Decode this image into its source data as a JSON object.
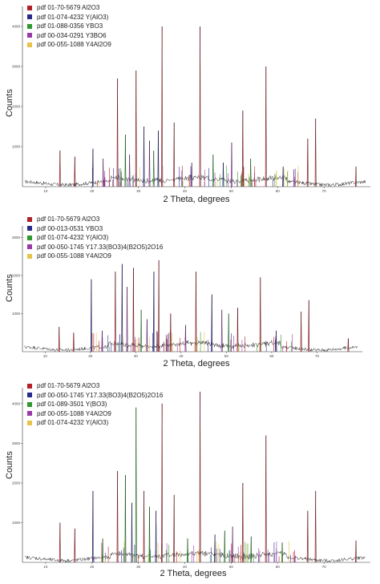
{
  "chart_data": [
    {
      "type": "line",
      "xlabel": "2 Theta, degrees",
      "ylabel": "Counts",
      "xlim": [
        5,
        80
      ],
      "ylim": [
        0,
        4500
      ],
      "xticks": [
        "10",
        "20",
        "30",
        "40",
        "50",
        "60",
        "70"
      ],
      "yticks": [
        "1000",
        "2000",
        "3000",
        "4000"
      ],
      "legend": [
        {
          "label": "pdf 01-70-5679 Al2O3",
          "color": "#b4202a"
        },
        {
          "label": "pdf 01-074-4232 Y(AlO3)",
          "color": "#2a2a8c"
        },
        {
          "label": "pdf 01-088-0356 YBO3",
          "color": "#2e9a2e"
        },
        {
          "label": "pdf 00-034-0291 Y3BO6",
          "color": "#9a3aa8"
        },
        {
          "label": "pdf 00-055-1088 Y4Al2O9",
          "color": "#e8c34a"
        }
      ],
      "peaks": [
        {
          "x": 13.1,
          "y": 900,
          "c": 0
        },
        {
          "x": 16.3,
          "y": 750,
          "c": 0
        },
        {
          "x": 20.2,
          "y": 950,
          "c": 1
        },
        {
          "x": 22.4,
          "y": 700,
          "c": 3
        },
        {
          "x": 25.5,
          "y": 2700,
          "c": 0
        },
        {
          "x": 27.2,
          "y": 1300,
          "c": 2
        },
        {
          "x": 28.1,
          "y": 800,
          "c": 3
        },
        {
          "x": 29.5,
          "y": 2900,
          "c": 0
        },
        {
          "x": 31.2,
          "y": 1500,
          "c": 1
        },
        {
          "x": 32.4,
          "y": 1150,
          "c": 3
        },
        {
          "x": 33.3,
          "y": 900,
          "c": 2
        },
        {
          "x": 34.3,
          "y": 1400,
          "c": 1
        },
        {
          "x": 35.1,
          "y": 4000,
          "c": 0
        },
        {
          "x": 37.7,
          "y": 1600,
          "c": 0
        },
        {
          "x": 41.5,
          "y": 600,
          "c": 3
        },
        {
          "x": 43.3,
          "y": 4000,
          "c": 0
        },
        {
          "x": 46.1,
          "y": 800,
          "c": 2
        },
        {
          "x": 48.3,
          "y": 600,
          "c": 1
        },
        {
          "x": 50.1,
          "y": 1100,
          "c": 3
        },
        {
          "x": 52.5,
          "y": 1900,
          "c": 0
        },
        {
          "x": 54.2,
          "y": 700,
          "c": 2
        },
        {
          "x": 57.5,
          "y": 3000,
          "c": 0
        },
        {
          "x": 61.2,
          "y": 500,
          "c": 1
        },
        {
          "x": 66.5,
          "y": 1200,
          "c": 0
        },
        {
          "x": 68.2,
          "y": 1700,
          "c": 0
        },
        {
          "x": 76.9,
          "y": 500,
          "c": 0
        }
      ]
    },
    {
      "type": "line",
      "xlabel": "2 Theta, degrees",
      "ylabel": "Counts",
      "xlim": [
        5,
        80
      ],
      "ylim": [
        0,
        3300
      ],
      "xticks": [
        "10",
        "20",
        "30",
        "40",
        "50",
        "60",
        "70"
      ],
      "yticks": [
        "1000",
        "2000",
        "3000"
      ],
      "legend": [
        {
          "label": "pdf 01-70-5679 Al2O3",
          "color": "#b4202a"
        },
        {
          "label": "pdf 00-013-0531 YBO3",
          "color": "#2a2a8c"
        },
        {
          "label": "pdf 01-074-4232 Y(AlO3)",
          "color": "#2e9a2e"
        },
        {
          "label": "pdf 00-050-1745 Y17.33(BO3)4(B2O5)2O16",
          "color": "#9a3aa8"
        },
        {
          "label": "pdf 00-055-1088 Y4Al2O9",
          "color": "#e8c34a"
        }
      ],
      "peaks": [
        {
          "x": 13.1,
          "y": 650,
          "c": 0
        },
        {
          "x": 16.3,
          "y": 500,
          "c": 0
        },
        {
          "x": 20.2,
          "y": 1900,
          "c": 1
        },
        {
          "x": 22.6,
          "y": 550,
          "c": 3
        },
        {
          "x": 25.5,
          "y": 2100,
          "c": 0
        },
        {
          "x": 27.0,
          "y": 2300,
          "c": 1
        },
        {
          "x": 28.1,
          "y": 1700,
          "c": 3
        },
        {
          "x": 29.5,
          "y": 2200,
          "c": 0
        },
        {
          "x": 31.2,
          "y": 1100,
          "c": 2
        },
        {
          "x": 32.5,
          "y": 850,
          "c": 3
        },
        {
          "x": 34.0,
          "y": 2100,
          "c": 1
        },
        {
          "x": 35.1,
          "y": 2400,
          "c": 0
        },
        {
          "x": 37.7,
          "y": 1000,
          "c": 0
        },
        {
          "x": 41.0,
          "y": 700,
          "c": 3
        },
        {
          "x": 43.3,
          "y": 2100,
          "c": 0
        },
        {
          "x": 46.8,
          "y": 1500,
          "c": 1
        },
        {
          "x": 49.0,
          "y": 1100,
          "c": 3
        },
        {
          "x": 50.5,
          "y": 1000,
          "c": 2
        },
        {
          "x": 52.5,
          "y": 1150,
          "c": 0
        },
        {
          "x": 57.5,
          "y": 1950,
          "c": 0
        },
        {
          "x": 61.0,
          "y": 550,
          "c": 1
        },
        {
          "x": 66.5,
          "y": 1050,
          "c": 0
        },
        {
          "x": 68.2,
          "y": 1350,
          "c": 0
        },
        {
          "x": 76.9,
          "y": 350,
          "c": 0
        }
      ]
    },
    {
      "type": "line",
      "xlabel": "2 Theta, degrees",
      "ylabel": "Counts",
      "xlim": [
        5,
        80
      ],
      "ylim": [
        0,
        4400
      ],
      "xticks": [
        "10",
        "20",
        "30",
        "40",
        "50",
        "60",
        "70"
      ],
      "yticks": [
        "1000",
        "2000",
        "3000",
        "4000"
      ],
      "legend": [
        {
          "label": "pdf 01-70-5679 Al2O3",
          "color": "#b4202a"
        },
        {
          "label": "pdf 00-050-1745 Y17.33(BO3)4(B2O5)2O16",
          "color": "#2a2a8c"
        },
        {
          "label": "pdf 01-089-3501 Y(BO3)",
          "color": "#2e9a2e"
        },
        {
          "label": "pdf 00-055-1088 Y4Al2O9",
          "color": "#9a3aa8"
        },
        {
          "label": "pdf 01-074-4232 Y(AlO3)",
          "color": "#e8c34a"
        }
      ],
      "peaks": [
        {
          "x": 13.1,
          "y": 1000,
          "c": 0
        },
        {
          "x": 16.3,
          "y": 850,
          "c": 0
        },
        {
          "x": 20.2,
          "y": 1800,
          "c": 1
        },
        {
          "x": 22.3,
          "y": 600,
          "c": 2
        },
        {
          "x": 25.5,
          "y": 2300,
          "c": 0
        },
        {
          "x": 27.2,
          "y": 2200,
          "c": 2
        },
        {
          "x": 28.6,
          "y": 1500,
          "c": 1
        },
        {
          "x": 29.5,
          "y": 3900,
          "c": 2
        },
        {
          "x": 31.2,
          "y": 1800,
          "c": 0
        },
        {
          "x": 32.4,
          "y": 1400,
          "c": 2
        },
        {
          "x": 33.8,
          "y": 1300,
          "c": 1
        },
        {
          "x": 35.1,
          "y": 4000,
          "c": 0
        },
        {
          "x": 37.7,
          "y": 1700,
          "c": 0
        },
        {
          "x": 40.6,
          "y": 600,
          "c": 2
        },
        {
          "x": 43.3,
          "y": 4300,
          "c": 0
        },
        {
          "x": 46.5,
          "y": 700,
          "c": 1
        },
        {
          "x": 48.6,
          "y": 800,
          "c": 2
        },
        {
          "x": 50.3,
          "y": 900,
          "c": 3
        },
        {
          "x": 52.5,
          "y": 2000,
          "c": 0
        },
        {
          "x": 54.3,
          "y": 650,
          "c": 2
        },
        {
          "x": 57.5,
          "y": 3200,
          "c": 0
        },
        {
          "x": 61.0,
          "y": 500,
          "c": 2
        },
        {
          "x": 66.5,
          "y": 1300,
          "c": 0
        },
        {
          "x": 68.2,
          "y": 1800,
          "c": 0
        },
        {
          "x": 76.9,
          "y": 550,
          "c": 0
        }
      ]
    }
  ]
}
